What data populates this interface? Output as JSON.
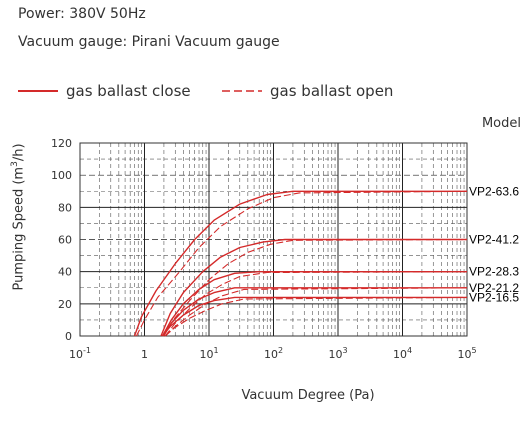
{
  "header": {
    "power": "Power: 380V 50Hz",
    "gauge": "Vacuum gauge: Pirani Vacuum gauge"
  },
  "legend": {
    "close_label": "gas ballast close",
    "open_label": "gas ballast open"
  },
  "model_label": "Model",
  "colors": {
    "curve": "#d42a2a",
    "grid_major": "#222222",
    "grid_minor": "#555555"
  },
  "chart_data": {
    "type": "line",
    "xlabel": "Vacuum Degree (Pa)",
    "ylabel_text": "Pumping Speed (m",
    "ylabel_sup": "3",
    "ylabel_end": "/h)",
    "x_scale": "log",
    "xlim": [
      0.1,
      100000
    ],
    "ylim": [
      0,
      120
    ],
    "x_ticks": [
      {
        "value": 0.1,
        "base": "10",
        "exp": "-1"
      },
      {
        "value": 1,
        "base": "1",
        "exp": ""
      },
      {
        "value": 10,
        "base": "10",
        "exp": "1"
      },
      {
        "value": 100,
        "base": "10",
        "exp": "2"
      },
      {
        "value": 1000,
        "base": "10",
        "exp": "3"
      },
      {
        "value": 10000,
        "base": "10",
        "exp": "4"
      },
      {
        "value": 100000,
        "base": "10",
        "exp": "5"
      }
    ],
    "y_ticks": [
      0,
      20,
      40,
      60,
      80,
      100,
      120
    ],
    "grid": true,
    "series": [
      {
        "name": "VP2-63.6",
        "plateau": 90,
        "close": {
          "x": [
            0.7,
            0.9,
            1.5,
            3,
            6,
            12,
            30,
            80,
            200,
            100000
          ],
          "y": [
            0,
            12,
            28,
            45,
            60,
            72,
            82,
            88,
            90,
            90
          ]
        },
        "open": {
          "x": [
            0.75,
            1,
            1.6,
            3.5,
            7,
            15,
            40,
            100,
            250,
            100000
          ],
          "y": [
            0,
            10,
            24,
            40,
            55,
            68,
            79,
            86,
            89,
            90
          ]
        }
      },
      {
        "name": "VP2-41.2",
        "plateau": 60,
        "close": {
          "x": [
            1.8,
            2.5,
            4,
            8,
            15,
            30,
            70,
            150,
            100000
          ],
          "y": [
            0,
            14,
            27,
            40,
            49,
            55,
            58.5,
            60,
            60
          ]
        },
        "open": {
          "x": [
            2,
            2.8,
            5,
            10,
            20,
            40,
            90,
            200,
            100000
          ],
          "y": [
            0,
            10,
            22,
            35,
            45,
            52,
            57,
            59.5,
            60
          ]
        }
      },
      {
        "name": "VP2-28.3",
        "plateau": 40,
        "close": {
          "x": [
            1.9,
            2.6,
            4,
            7,
            12,
            25,
            60,
            100000
          ],
          "y": [
            0,
            10,
            20,
            29,
            35,
            39,
            40,
            40
          ]
        },
        "open": {
          "x": [
            2.1,
            3,
            5,
            9,
            16,
            30,
            80,
            100000
          ],
          "y": [
            0,
            8,
            17,
            26,
            32,
            37,
            39.5,
            40
          ]
        }
      },
      {
        "name": "VP2-21.2",
        "plateau": 30,
        "close": {
          "x": [
            1.9,
            2.6,
            4,
            7,
            12,
            25,
            100000
          ],
          "y": [
            0,
            8,
            16,
            23,
            27,
            30,
            30
          ]
        },
        "open": {
          "x": [
            2.1,
            3,
            5,
            9,
            16,
            35,
            100000
          ],
          "y": [
            0,
            6,
            13,
            20,
            25,
            29,
            30
          ]
        }
      },
      {
        "name": "VP2-16.5",
        "plateau": 24,
        "close": {
          "x": [
            1.9,
            2.5,
            4,
            7,
            12,
            25,
            100000
          ],
          "y": [
            0,
            6,
            13,
            19,
            22,
            24,
            24
          ]
        },
        "open": {
          "x": [
            2.1,
            2.9,
            5,
            9,
            16,
            35,
            100000
          ],
          "y": [
            0,
            5,
            11,
            16,
            20,
            23,
            24
          ]
        }
      }
    ]
  }
}
